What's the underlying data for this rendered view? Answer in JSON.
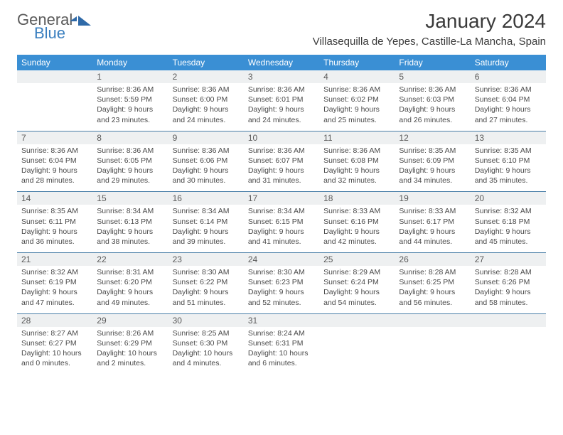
{
  "logo": {
    "general": "General",
    "blue": "Blue"
  },
  "title": "January 2024",
  "location": "Villasequilla de Yepes, Castille-La Mancha, Spain",
  "styling": {
    "header_bg": "#3a8fd4",
    "header_fg": "#ffffff",
    "daynum_bg": "#eef0f1",
    "cell_fg": "#4a4a4a",
    "divider": "#4a7fa8",
    "title_fontsize": 28,
    "location_fontsize": 15,
    "dayhead_fontsize": 12,
    "detail_fontsize": 10.5
  },
  "day_names": [
    "Sunday",
    "Monday",
    "Tuesday",
    "Wednesday",
    "Thursday",
    "Friday",
    "Saturday"
  ],
  "weeks": [
    {
      "nums": [
        "",
        "1",
        "2",
        "3",
        "4",
        "5",
        "6"
      ],
      "details": [
        "",
        "Sunrise: 8:36 AM\nSunset: 5:59 PM\nDaylight: 9 hours and 23 minutes.",
        "Sunrise: 8:36 AM\nSunset: 6:00 PM\nDaylight: 9 hours and 24 minutes.",
        "Sunrise: 8:36 AM\nSunset: 6:01 PM\nDaylight: 9 hours and 24 minutes.",
        "Sunrise: 8:36 AM\nSunset: 6:02 PM\nDaylight: 9 hours and 25 minutes.",
        "Sunrise: 8:36 AM\nSunset: 6:03 PM\nDaylight: 9 hours and 26 minutes.",
        "Sunrise: 8:36 AM\nSunset: 6:04 PM\nDaylight: 9 hours and 27 minutes."
      ]
    },
    {
      "nums": [
        "7",
        "8",
        "9",
        "10",
        "11",
        "12",
        "13"
      ],
      "details": [
        "Sunrise: 8:36 AM\nSunset: 6:04 PM\nDaylight: 9 hours and 28 minutes.",
        "Sunrise: 8:36 AM\nSunset: 6:05 PM\nDaylight: 9 hours and 29 minutes.",
        "Sunrise: 8:36 AM\nSunset: 6:06 PM\nDaylight: 9 hours and 30 minutes.",
        "Sunrise: 8:36 AM\nSunset: 6:07 PM\nDaylight: 9 hours and 31 minutes.",
        "Sunrise: 8:36 AM\nSunset: 6:08 PM\nDaylight: 9 hours and 32 minutes.",
        "Sunrise: 8:35 AM\nSunset: 6:09 PM\nDaylight: 9 hours and 34 minutes.",
        "Sunrise: 8:35 AM\nSunset: 6:10 PM\nDaylight: 9 hours and 35 minutes."
      ]
    },
    {
      "nums": [
        "14",
        "15",
        "16",
        "17",
        "18",
        "19",
        "20"
      ],
      "details": [
        "Sunrise: 8:35 AM\nSunset: 6:11 PM\nDaylight: 9 hours and 36 minutes.",
        "Sunrise: 8:34 AM\nSunset: 6:13 PM\nDaylight: 9 hours and 38 minutes.",
        "Sunrise: 8:34 AM\nSunset: 6:14 PM\nDaylight: 9 hours and 39 minutes.",
        "Sunrise: 8:34 AM\nSunset: 6:15 PM\nDaylight: 9 hours and 41 minutes.",
        "Sunrise: 8:33 AM\nSunset: 6:16 PM\nDaylight: 9 hours and 42 minutes.",
        "Sunrise: 8:33 AM\nSunset: 6:17 PM\nDaylight: 9 hours and 44 minutes.",
        "Sunrise: 8:32 AM\nSunset: 6:18 PM\nDaylight: 9 hours and 45 minutes."
      ]
    },
    {
      "nums": [
        "21",
        "22",
        "23",
        "24",
        "25",
        "26",
        "27"
      ],
      "details": [
        "Sunrise: 8:32 AM\nSunset: 6:19 PM\nDaylight: 9 hours and 47 minutes.",
        "Sunrise: 8:31 AM\nSunset: 6:20 PM\nDaylight: 9 hours and 49 minutes.",
        "Sunrise: 8:30 AM\nSunset: 6:22 PM\nDaylight: 9 hours and 51 minutes.",
        "Sunrise: 8:30 AM\nSunset: 6:23 PM\nDaylight: 9 hours and 52 minutes.",
        "Sunrise: 8:29 AM\nSunset: 6:24 PM\nDaylight: 9 hours and 54 minutes.",
        "Sunrise: 8:28 AM\nSunset: 6:25 PM\nDaylight: 9 hours and 56 minutes.",
        "Sunrise: 8:28 AM\nSunset: 6:26 PM\nDaylight: 9 hours and 58 minutes."
      ]
    },
    {
      "nums": [
        "28",
        "29",
        "30",
        "31",
        "",
        "",
        ""
      ],
      "details": [
        "Sunrise: 8:27 AM\nSunset: 6:27 PM\nDaylight: 10 hours and 0 minutes.",
        "Sunrise: 8:26 AM\nSunset: 6:29 PM\nDaylight: 10 hours and 2 minutes.",
        "Sunrise: 8:25 AM\nSunset: 6:30 PM\nDaylight: 10 hours and 4 minutes.",
        "Sunrise: 8:24 AM\nSunset: 6:31 PM\nDaylight: 10 hours and 6 minutes.",
        "",
        "",
        ""
      ]
    }
  ]
}
